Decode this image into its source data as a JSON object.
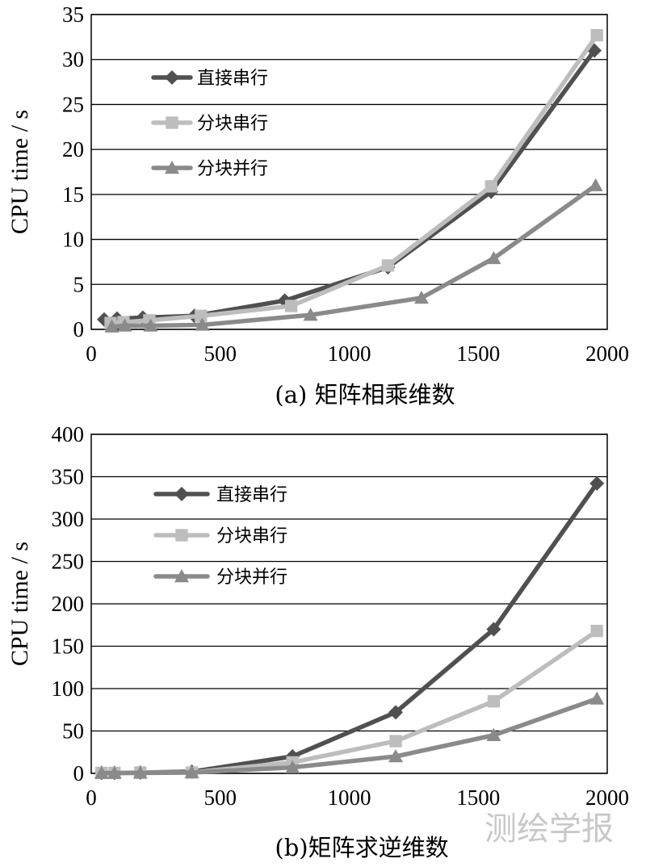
{
  "watermark": "测绘学报",
  "chart_data": [
    {
      "type": "line",
      "caption": "(a) 矩阵相乘维数",
      "ylabel": "CPU time / s",
      "xlim": [
        0,
        2000
      ],
      "ylim": [
        0,
        35
      ],
      "xticks": [
        "0",
        "500",
        "1000",
        "1500",
        "2000"
      ],
      "yticks": [
        "0",
        "5",
        "10",
        "15",
        "20",
        "25",
        "30",
        "35"
      ],
      "grid": "horizontal",
      "legend": "upper-left",
      "series": [
        {
          "name": "直接串行",
          "marker": "diamond",
          "color": "#505050",
          "x": [
            50,
            100,
            200,
            400,
            750,
            1150,
            1550,
            1950
          ],
          "y": [
            1.1,
            1.2,
            1.3,
            1.5,
            3.2,
            6.9,
            15.3,
            31.0
          ]
        },
        {
          "name": "分块串行",
          "marker": "square",
          "color": "#bdbdbd",
          "x": [
            75,
            125,
            225,
            425,
            775,
            1150,
            1550,
            1960
          ],
          "y": [
            0.7,
            0.8,
            1.0,
            1.5,
            2.6,
            7.1,
            15.9,
            32.7
          ]
        },
        {
          "name": "分块并行",
          "marker": "triangle",
          "color": "#8a8a8a",
          "x": [
            80,
            130,
            230,
            430,
            850,
            1280,
            1560,
            1955
          ],
          "y": [
            0.3,
            0.4,
            0.4,
            0.5,
            1.6,
            3.5,
            7.9,
            16.0
          ]
        }
      ]
    },
    {
      "type": "line",
      "caption": "(b)矩阵求逆维数",
      "ylabel": "CPU time / s",
      "xlim": [
        0,
        2000
      ],
      "ylim": [
        0,
        400
      ],
      "xticks": [
        "0",
        "500",
        "1000",
        "1500",
        "2000"
      ],
      "yticks": [
        "0",
        "50",
        "100",
        "150",
        "200",
        "250",
        "300",
        "350",
        "400"
      ],
      "grid": "horizontal",
      "legend": "upper-left",
      "series": [
        {
          "name": "直接串行",
          "marker": "diamond",
          "color": "#505050",
          "x": [
            40,
            90,
            190,
            390,
            780,
            1180,
            1560,
            1960
          ],
          "y": [
            0.5,
            0.5,
            1,
            2,
            20,
            72,
            170,
            342
          ]
        },
        {
          "name": "分块串行",
          "marker": "square",
          "color": "#bdbdbd",
          "x": [
            40,
            90,
            190,
            390,
            780,
            1180,
            1560,
            1960
          ],
          "y": [
            0.5,
            0.5,
            1,
            1,
            13,
            38,
            85,
            168
          ]
        },
        {
          "name": "分块并行",
          "marker": "triangle",
          "color": "#8a8a8a",
          "x": [
            40,
            90,
            190,
            390,
            780,
            1180,
            1560,
            1960
          ],
          "y": [
            0.3,
            0.3,
            0.5,
            1,
            7,
            20,
            45,
            88
          ]
        }
      ]
    }
  ]
}
